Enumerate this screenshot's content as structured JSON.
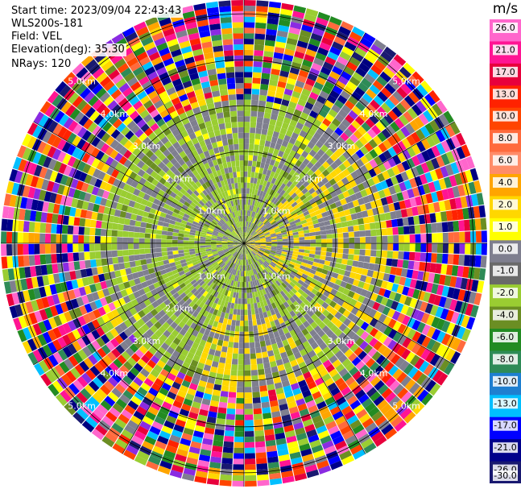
{
  "info": {
    "start_time": "Start time: 2023/09/04 22:43:43",
    "instrument": "WLS200s-181",
    "field": "Field: VEL",
    "elevation": "Elevation(deg): 35.30",
    "nrays": "NRays: 120"
  },
  "colorbar": {
    "unit": "m/s",
    "ticks": [
      "26.0",
      "21.0",
      "17.0",
      "13.0",
      "10.0",
      "8.0",
      "6.0",
      "4.0",
      "2.0",
      "1.0",
      "0.0",
      "-1.0",
      "-2.0",
      "-4.0",
      "-6.0",
      "-8.0",
      "-10.0",
      "-13.0",
      "-17.0",
      "-21.0",
      "-26.0",
      "-30.0"
    ],
    "colors": [
      "#ff66cc",
      "#ff1493",
      "#e8003c",
      "#ff2200",
      "#ff4500",
      "#ff6a3d",
      "#ff8c69",
      "#ffa500",
      "#ffd700",
      "#ffff00",
      "#7f7f8f",
      "#696969",
      "#9acd32",
      "#6b8e23",
      "#228b22",
      "#2e8b57",
      "#1e7fd0",
      "#00bfff",
      "#0000ff",
      "#00008b",
      "#191970",
      "#000080"
    ]
  },
  "chart_data": {
    "type": "heatmap",
    "projection": "polar PPI",
    "field": "VEL",
    "units": "m/s",
    "nrays": 120,
    "range_rings_km": [
      1.0,
      2.0,
      3.0,
      4.0,
      5.0
    ],
    "ring_labels": [
      "1.0km",
      "2.0km",
      "3.0km",
      "4.0km",
      "5.0km"
    ],
    "max_range_km": 5.3,
    "color_range": [
      -30.0,
      26.0
    ]
  }
}
